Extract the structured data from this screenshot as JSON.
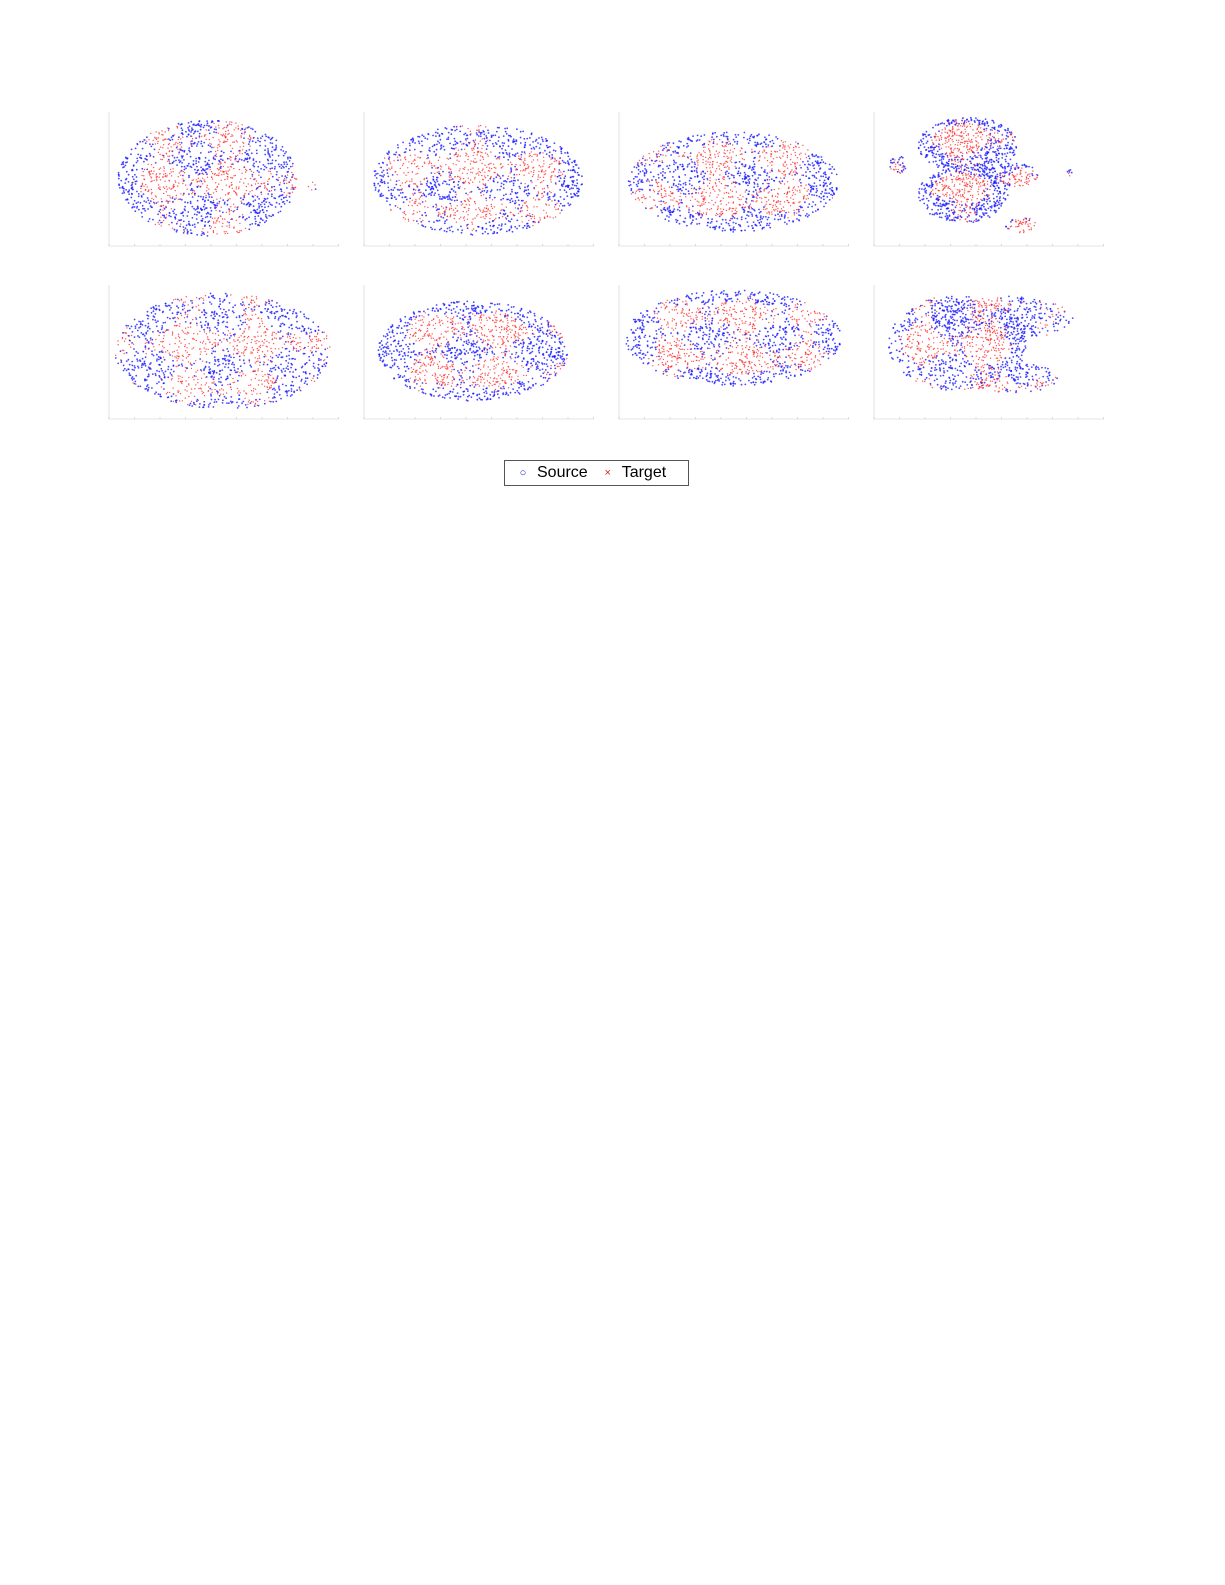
{
  "chart_data": {
    "type": "scatter",
    "layout": "2 rows x 4 columns of panels",
    "grid": false,
    "legend_placement": "bottom-center",
    "series": [
      {
        "name": "Source",
        "marker": "circle",
        "color": "#1a1aff"
      },
      {
        "name": "Target",
        "marker": "x",
        "color": "#ff2a2a"
      }
    ],
    "panel_count": 8,
    "legend": {
      "source": "Source",
      "target": "Target"
    }
  }
}
